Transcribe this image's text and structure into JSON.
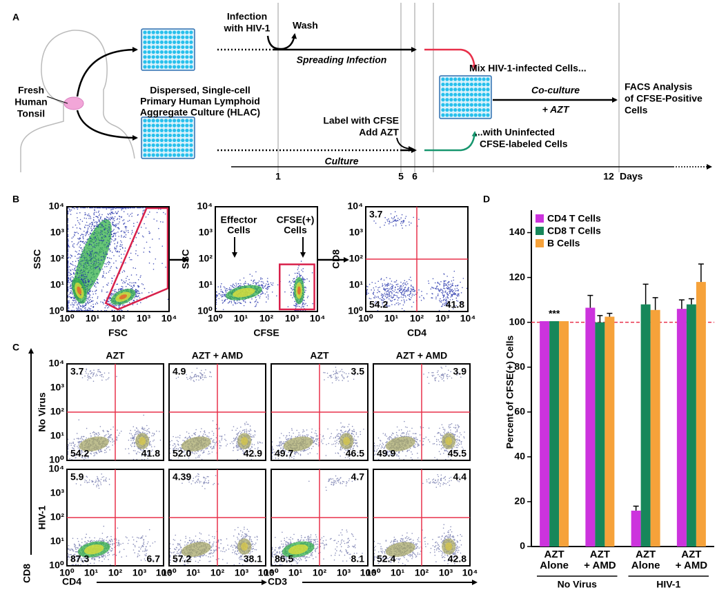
{
  "panel_a": {
    "label": "A",
    "tonsil_label": [
      "Fresh",
      "Human",
      "Tonsil"
    ],
    "infection_label": [
      "Infection",
      "with HIV-1"
    ],
    "wash_label": "Wash",
    "spreading_label": "Spreading Infection",
    "hlac_label": [
      "Dispersed, Single-cell",
      "Primary Human Lymphoid",
      "Aggregate Culture (HLAC)"
    ],
    "cfse_label": [
      "Label with CFSE",
      "Add AZT"
    ],
    "culture_label": "Culture",
    "mix_label": "Mix HIV-1-infected Cells...",
    "uninfected_label": [
      "...with Uninfected",
      "CFSE-labeled Cells"
    ],
    "coculture_label": "Co-culture",
    "azt_label": "+ AZT",
    "facs_label": [
      "FACS Analysis",
      "of CFSE-Positive",
      "Cells"
    ],
    "timeline_days": [
      "1",
      "5",
      "6",
      "12"
    ],
    "timeline_unit": "Days"
  },
  "panel_b": {
    "label": "B",
    "axis_tick_labels": [
      "10⁰",
      "10¹",
      "10²",
      "10³",
      "10⁴"
    ],
    "plots": [
      {
        "x_label": "FSC",
        "y_label": "SSC"
      },
      {
        "x_label": "CFSE",
        "y_label": "SSC",
        "annotations": [
          [
            "Effector",
            "Cells"
          ],
          [
            "CFSE(+)",
            "Cells"
          ]
        ]
      },
      {
        "x_label": "CD4",
        "y_label": "CD8",
        "quadrants": {
          "upper_left": "3.7",
          "lower_left": "54.2",
          "lower_right": "41.8"
        }
      }
    ]
  },
  "panel_c": {
    "label": "C",
    "column_headers": [
      "AZT",
      "AZT + AMD",
      "AZT",
      "AZT + AMD"
    ],
    "row_labels": [
      "No Virus",
      "HIV-1"
    ],
    "x_labels": [
      "CD4",
      "CD3"
    ],
    "y_label": "CD8",
    "plots": [
      [
        {
          "upper_left": "3.7",
          "lower_left": "54.2",
          "lower_right": "41.8"
        },
        {
          "upper_left": "4.9",
          "lower_left": "52.0",
          "lower_right": "42.9"
        },
        {
          "upper_right": "3.5",
          "lower_left": "49.7",
          "lower_right": "46.5"
        },
        {
          "upper_right": "3.9",
          "lower_left": "49.9",
          "lower_right": "45.5"
        }
      ],
      [
        {
          "upper_left": "5.9",
          "lower_left": "87.3",
          "lower_right": "6.7"
        },
        {
          "upper_left": "4.39",
          "lower_left": "57.2",
          "lower_right": "38.1"
        },
        {
          "upper_right": "4.7",
          "lower_left": "86.5",
          "lower_right": "8.1"
        },
        {
          "upper_right": "4.4",
          "lower_left": "52.4",
          "lower_right": "42.8"
        }
      ]
    ]
  },
  "chart_data": {
    "type": "bar",
    "panel_label": "D",
    "y_label": "Percent of CFSE(+) Cells",
    "categories": [
      "AZT\nAlone",
      "AZT\n+ AMD",
      "AZT\nAlone",
      "AZT\n+ AMD"
    ],
    "group_labels": [
      "No Virus",
      "HIV-1"
    ],
    "series": [
      {
        "name": "CD4 T Cells",
        "color": "#cc33dd",
        "values": [
          100.5,
          106.5,
          16,
          106
        ],
        "errors": [
          null,
          5.5,
          2,
          4
        ]
      },
      {
        "name": "CD8 T Cells",
        "color": "#17875a",
        "values": [
          100.5,
          100,
          108,
          108
        ],
        "errors": [
          null,
          3,
          9,
          2.5
        ]
      },
      {
        "name": "B Cells",
        "color": "#f6a23a",
        "values": [
          100.5,
          102.5,
          105.5,
          118
        ],
        "errors": [
          null,
          1.5,
          5.5,
          8
        ]
      }
    ],
    "ylim": [
      0,
      150
    ],
    "yticks": [
      0,
      20,
      40,
      60,
      80,
      100,
      120,
      140
    ],
    "reference_line": {
      "value": 100,
      "color": "#e8304a"
    },
    "annotations": [
      {
        "text": "***"
      }
    ],
    "legend": "upper left"
  }
}
